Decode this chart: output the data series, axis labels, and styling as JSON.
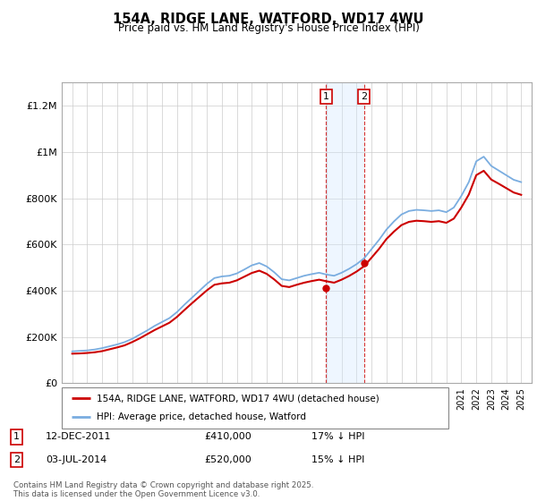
{
  "title": "154A, RIDGE LANE, WATFORD, WD17 4WU",
  "subtitle": "Price paid vs. HM Land Registry's House Price Index (HPI)",
  "footnote": "Contains HM Land Registry data © Crown copyright and database right 2025.\nThis data is licensed under the Open Government Licence v3.0.",
  "legend_house": "154A, RIDGE LANE, WATFORD, WD17 4WU (detached house)",
  "legend_hpi": "HPI: Average price, detached house, Watford",
  "transaction1_label": "1",
  "transaction1_date": "12-DEC-2011",
  "transaction1_price": "£410,000",
  "transaction1_hpi": "17% ↓ HPI",
  "transaction2_label": "2",
  "transaction2_date": "03-JUL-2014",
  "transaction2_price": "£520,000",
  "transaction2_hpi": "15% ↓ HPI",
  "house_color": "#cc0000",
  "hpi_color": "#7aade0",
  "shade_color": "#d0e8ff",
  "ylim_max": 1300000,
  "yticks": [
    0,
    200000,
    400000,
    600000,
    800000,
    1000000,
    1200000
  ],
  "ytick_labels": [
    "£0",
    "£200K",
    "£400K",
    "£600K",
    "£800K",
    "£1M",
    "£1.2M"
  ],
  "t1_x": 2011.958,
  "t1_y": 410000,
  "t2_x": 2014.5,
  "t2_y": 520000,
  "xlim_left": 1994.3,
  "xlim_right": 2025.7
}
